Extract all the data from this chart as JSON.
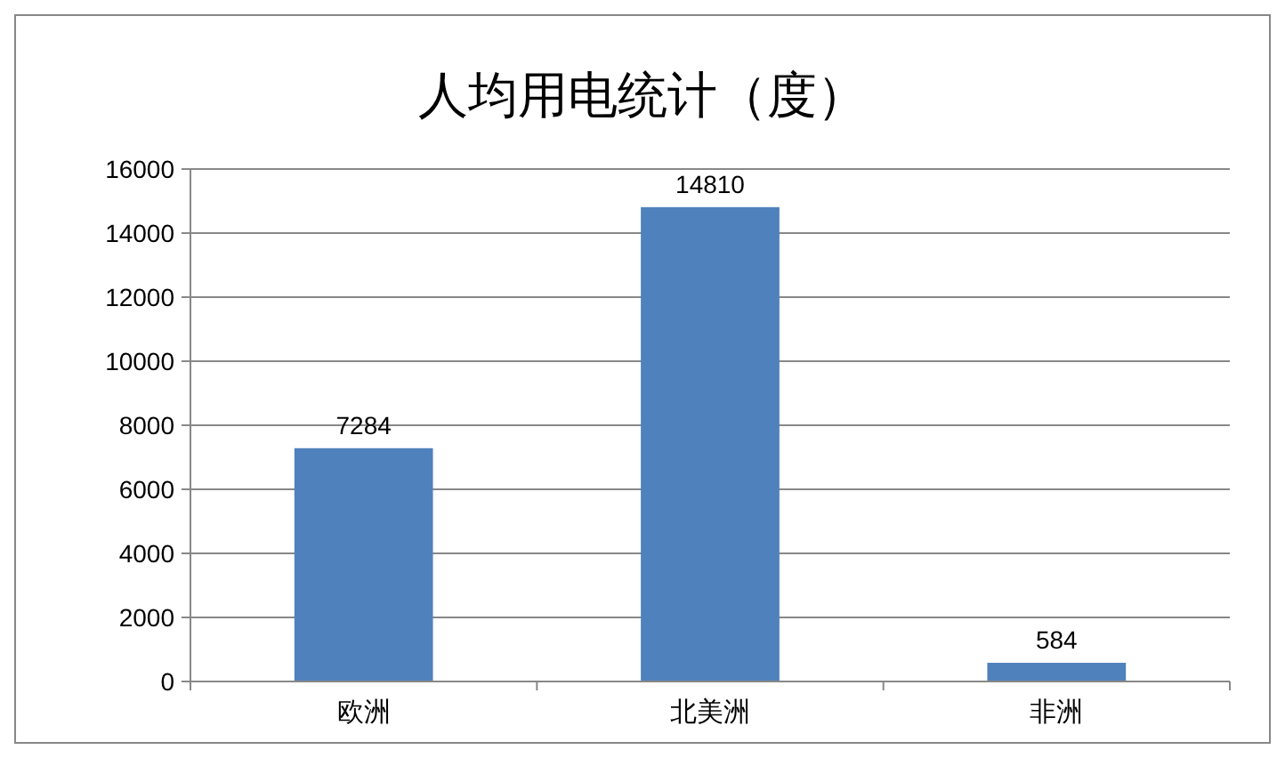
{
  "chart_data": {
    "type": "bar",
    "title": "人均用电统计（度）",
    "categories": [
      "欧洲",
      "北美洲",
      "非洲"
    ],
    "values": [
      7284,
      14810,
      584
    ],
    "color": "#4f81bd",
    "ylim": [
      0,
      16000
    ],
    "yticks": [
      0,
      2000,
      4000,
      6000,
      8000,
      10000,
      12000,
      14000,
      16000
    ],
    "grid": "y",
    "data_labels": true
  }
}
